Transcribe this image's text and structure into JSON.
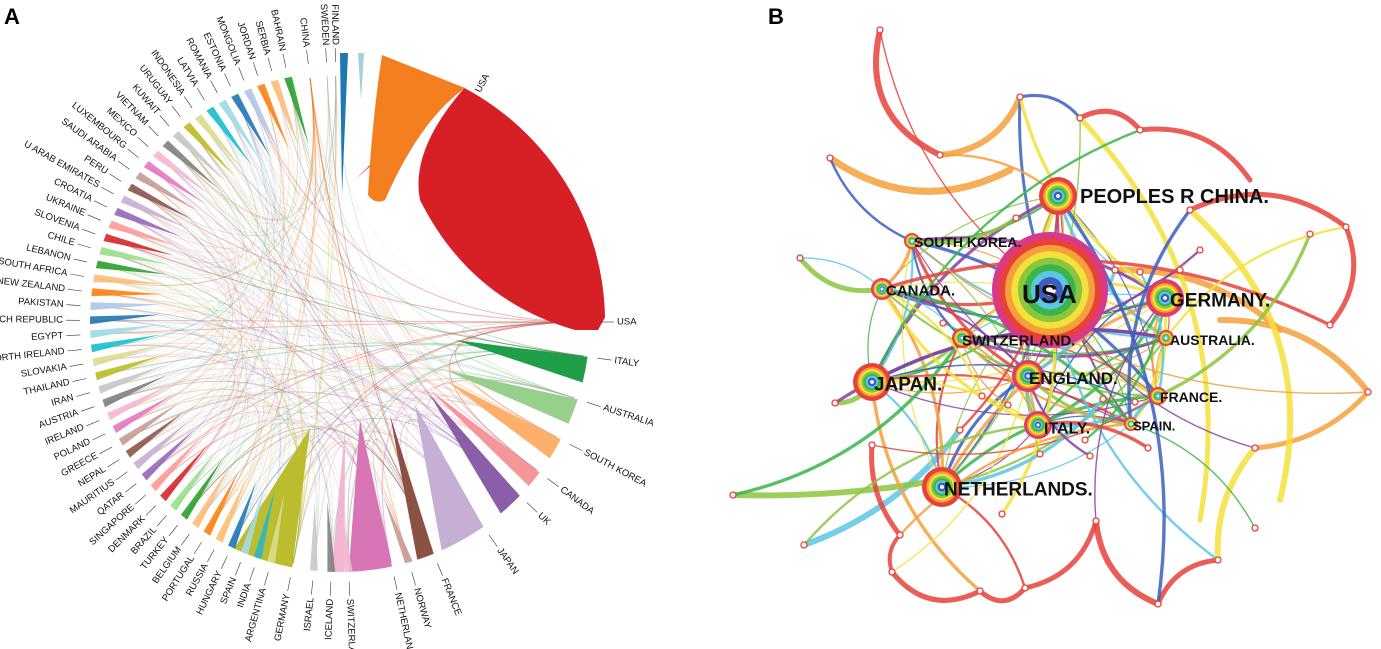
{
  "figure": {
    "panel_a_label": "A",
    "panel_b_label": "B"
  },
  "panel_a": {
    "type": "chord",
    "countries": [
      {
        "name": "USA",
        "color": "#d71f26",
        "major": true
      },
      {
        "name": "ITALY",
        "color": "#1f9e47",
        "major": true
      },
      {
        "name": "AUSTRALIA",
        "color": "#96d08c",
        "major": true
      },
      {
        "name": "SOUTH KOREA",
        "color": "#fdb06c",
        "major": true
      },
      {
        "name": "CANADA",
        "color": "#f59799",
        "major": true
      },
      {
        "name": "UK",
        "color": "#8b5ea8",
        "major": true
      },
      {
        "name": "JAPAN",
        "color": "#c5afd5",
        "major": true
      },
      {
        "name": "FRANCE",
        "color": "#8b5144",
        "major": true
      },
      {
        "name": "NORWAY",
        "color": "#c59a92",
        "major": false
      },
      {
        "name": "NETHERLANDS",
        "color": "#d775b7",
        "major": true
      },
      {
        "name": "SWITZERLAND",
        "color": "#f2b6d2",
        "major": false
      },
      {
        "name": "ICELAND",
        "color": "#7f7f7f",
        "major": false
      },
      {
        "name": "ISRAEL",
        "color": "#c9c9c9",
        "major": false
      },
      {
        "name": "GERMANY",
        "color": "#bbbd2f",
        "major": true
      },
      {
        "name": "ARGENTINA",
        "color": "#dcdc8d",
        "major": false
      },
      {
        "name": "INDIA",
        "color": "#2ab5c9",
        "major": false
      },
      {
        "name": "SPAIN",
        "color": "#a6dae8",
        "major": false
      },
      {
        "name": "HUNGARY",
        "color": "#1f78b4",
        "major": false
      },
      {
        "name": "RUSSIA",
        "color": "#fdbf6f",
        "major": false
      },
      {
        "name": "PORTUGAL",
        "color": "#ff7f0e",
        "major": false
      },
      {
        "name": "BELGIUM",
        "color": "#ffbb78",
        "major": false
      },
      {
        "name": "TURKEY",
        "color": "#2ca02c",
        "major": false
      },
      {
        "name": "BRAZIL",
        "color": "#98df8a",
        "major": false
      },
      {
        "name": "DENMARK",
        "color": "#d62728",
        "major": false
      },
      {
        "name": "SINGAPORE",
        "color": "#ff9896",
        "major": false
      },
      {
        "name": "QATAR",
        "color": "#9467bd",
        "major": false
      },
      {
        "name": "MAURITIUS",
        "color": "#c5b0d5",
        "major": false
      },
      {
        "name": "NEPAL",
        "color": "#8c564b",
        "major": false
      },
      {
        "name": "GREECE",
        "color": "#c49c94",
        "major": false
      },
      {
        "name": "POLAND",
        "color": "#e377c2",
        "major": false
      },
      {
        "name": "IRELAND",
        "color": "#f7b6d2",
        "major": false
      },
      {
        "name": "AUSTRIA",
        "color": "#7f7f7f",
        "major": false
      },
      {
        "name": "IRAN",
        "color": "#c7c7c7",
        "major": false
      },
      {
        "name": "THAILAND",
        "color": "#bcbd22",
        "major": false
      },
      {
        "name": "SLOVAKIA",
        "color": "#dbdb8d",
        "major": false
      },
      {
        "name": "NORTH IRELAND",
        "color": "#17becf",
        "major": false
      },
      {
        "name": "EGYPT",
        "color": "#9edae5",
        "major": false
      },
      {
        "name": "CZECH REPUBLIC",
        "color": "#1f77b4",
        "major": false
      },
      {
        "name": "PAKISTAN",
        "color": "#aec7e8",
        "major": false
      },
      {
        "name": "NEW ZEALAND",
        "color": "#ff7f0e",
        "major": false
      },
      {
        "name": "SOUTH AFRICA",
        "color": "#ffbb78",
        "major": false
      },
      {
        "name": "LEBANON",
        "color": "#2ca02c",
        "major": false
      },
      {
        "name": "CHILE",
        "color": "#98df8a",
        "major": false
      },
      {
        "name": "SLOVENIA",
        "color": "#d62728",
        "major": false
      },
      {
        "name": "UKRAINE",
        "color": "#ff9896",
        "major": false
      },
      {
        "name": "CROATIA",
        "color": "#9467bd",
        "major": false
      },
      {
        "name": "U ARAB EMIRATES",
        "color": "#c5b0d5",
        "major": false
      },
      {
        "name": "PERU",
        "color": "#8c564b",
        "major": false
      },
      {
        "name": "SAUDI ARABIA",
        "color": "#c49c94",
        "major": false
      },
      {
        "name": "LUXEMBOURG",
        "color": "#e377c2",
        "major": false
      },
      {
        "name": "MEXICO",
        "color": "#f7b6d2",
        "major": false
      },
      {
        "name": "VIETNAM",
        "color": "#7f7f7f",
        "major": false
      },
      {
        "name": "KUWAIT",
        "color": "#c7c7c7",
        "major": false
      },
      {
        "name": "URUGUAY",
        "color": "#bcbd22",
        "major": false
      },
      {
        "name": "INDONESIA",
        "color": "#dbdb8d",
        "major": false
      },
      {
        "name": "LATVIA",
        "color": "#17becf",
        "major": false
      },
      {
        "name": "ROMANIA",
        "color": "#9edae5",
        "major": false
      },
      {
        "name": "ESTONIA",
        "color": "#1f77b4",
        "major": false
      },
      {
        "name": "MONGOLIA",
        "color": "#aec7e8",
        "major": false
      },
      {
        "name": "JORDAN",
        "color": "#ff7f0e",
        "major": false
      },
      {
        "name": "SERBIA",
        "color": "#ffbb78",
        "major": false
      },
      {
        "name": "BAHRAIN",
        "color": "#2ca02c",
        "major": false
      },
      {
        "name": "FINLAND",
        "color": "#1f78b4",
        "major": false
      },
      {
        "name": "SWEDEN",
        "color": "#a6cee3",
        "major": false
      },
      {
        "name": "CHINA",
        "color": "#f47f20",
        "major": true
      }
    ]
  },
  "panel_b": {
    "type": "network",
    "nodes": [
      {
        "id": "usa",
        "label": "USA",
        "color": "#d73a8d",
        "size": "largest"
      },
      {
        "id": "china",
        "label": "PEOPLES R CHINA.",
        "color": "#e8413a",
        "size": "large"
      },
      {
        "id": "germany",
        "label": "GERMANY.",
        "color": "#d43a8a",
        "size": "large"
      },
      {
        "id": "netherlands",
        "label": "NETHERLANDS.",
        "color": "#e8413a",
        "size": "large"
      },
      {
        "id": "japan",
        "label": "JAPAN.",
        "color": "#e8413a",
        "size": "large"
      },
      {
        "id": "england",
        "label": "ENGLAND.",
        "color": "#d73a8d",
        "size": "medium"
      },
      {
        "id": "italy",
        "label": "ITALY.",
        "color": "#d73a8d",
        "size": "medium"
      },
      {
        "id": "switzerland",
        "label": "SWITZERLAND.",
        "color": "#e8413a",
        "size": "small"
      },
      {
        "id": "canada",
        "label": "CANADA.",
        "color": "#d73a8d",
        "size": "small"
      },
      {
        "id": "southkorea",
        "label": "SOUTH KOREA.",
        "color": "#e8413a",
        "size": "small"
      },
      {
        "id": "australia",
        "label": "AUSTRALIA.",
        "color": "#e8413a",
        "size": "small"
      },
      {
        "id": "france",
        "label": "FRANCE.",
        "color": "#e8413a",
        "size": "small"
      },
      {
        "id": "spain",
        "label": "SPAIN.",
        "color": "#e8413a",
        "size": "small"
      }
    ],
    "edge_colors": [
      "#e8413a",
      "#f4a03b",
      "#f4e13b",
      "#8cc63f",
      "#3ab54a",
      "#5cc6e3",
      "#3b5fc0",
      "#8b3fa0"
    ]
  }
}
